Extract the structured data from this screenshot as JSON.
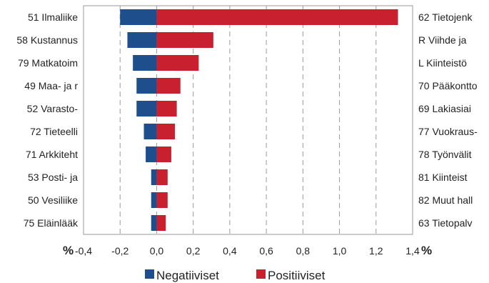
{
  "chart_data": {
    "type": "bar",
    "orientation": "horizontal",
    "left_categories": [
      "51 Ilmaliike",
      "58 Kustannus",
      "79 Matkatoim",
      "49 Maa- ja r",
      "52 Varasto-",
      "72 Tieteelli",
      "71 Arkkiteht",
      "53 Posti- ja",
      "50 Vesiliike",
      "75 Eläinlääk"
    ],
    "right_categories": [
      "62 Tietojenk",
      "R Viihde ja",
      "L Kiinteistö",
      "70 Pääkontto",
      "69 Lakiasiai",
      "77 Vuokraus-",
      "78 Työnvälit",
      "81 Kiinteist",
      "82 Muut hall",
      "63 Tietopalv"
    ],
    "series": [
      {
        "name": "Negatiiviset",
        "color": "#1f4e8c",
        "values": [
          -0.2,
          -0.16,
          -0.13,
          -0.11,
          -0.11,
          -0.07,
          -0.06,
          -0.03,
          -0.03,
          -0.03
        ]
      },
      {
        "name": "Positiiviset",
        "color": "#c8202f",
        "values": [
          1.32,
          0.31,
          0.23,
          0.13,
          0.11,
          0.1,
          0.08,
          0.06,
          0.06,
          0.05
        ]
      }
    ],
    "x_ticks": [
      "-0,4",
      "-0,2",
      "0,0",
      "0,2",
      "0,4",
      "0,6",
      "0,8",
      "1,0",
      "1,2",
      "1,4"
    ],
    "xlim": [
      -0.4,
      1.4
    ],
    "unit_left": "%",
    "unit_right": "%",
    "grid": "vertical dashed",
    "legend_position": "bottom-center"
  }
}
